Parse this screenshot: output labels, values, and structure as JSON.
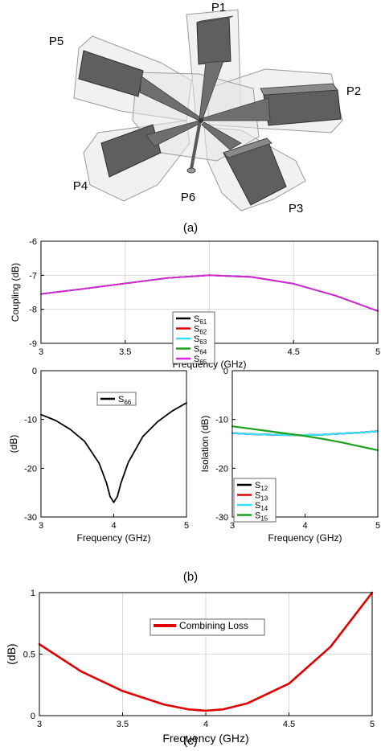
{
  "figure": {
    "ports": [
      "P1",
      "P2",
      "P3",
      "P4",
      "P5",
      "P6"
    ],
    "captions": [
      "(a)",
      "(b)",
      "(c)"
    ],
    "colors": {
      "black": "#000000",
      "red": "#e00000",
      "cyan": "#33e0ff",
      "green": "#1aa31a",
      "magenta": "#e020e0",
      "grid": "#d8d8d8"
    }
  },
  "chart_data": [
    {
      "id": "coupling",
      "type": "line",
      "xlabel": "Frequency (GHz)",
      "ylabel": "Coupling (dB)",
      "xlim": [
        3,
        5
      ],
      "ylim": [
        -9,
        -6
      ],
      "xticks": [
        3,
        3.5,
        4,
        4.5,
        5
      ],
      "xtick_labels": [
        "3",
        "3.5",
        "4",
        "4.5",
        "5"
      ],
      "yticks": [
        -9,
        -8,
        -7,
        -6
      ],
      "ytick_labels": [
        "-9",
        "-8",
        "-7",
        "-6"
      ],
      "grid": true,
      "legend": "center",
      "x": [
        3.0,
        3.25,
        3.5,
        3.75,
        4.0,
        4.25,
        4.5,
        4.75,
        5.0
      ],
      "series": [
        {
          "name": "S",
          "sub": "61",
          "color": "black",
          "values": [
            -7.55,
            -7.4,
            -7.24,
            -7.08,
            -7.0,
            -7.05,
            -7.25,
            -7.6,
            -8.05
          ]
        },
        {
          "name": "S",
          "sub": "62",
          "color": "red",
          "values": [
            -7.55,
            -7.4,
            -7.24,
            -7.08,
            -7.0,
            -7.05,
            -7.25,
            -7.6,
            -8.05
          ]
        },
        {
          "name": "S",
          "sub": "63",
          "color": "cyan",
          "values": [
            -7.55,
            -7.4,
            -7.24,
            -7.08,
            -7.0,
            -7.05,
            -7.25,
            -7.6,
            -8.05
          ]
        },
        {
          "name": "S",
          "sub": "64",
          "color": "green",
          "values": [
            -7.55,
            -7.4,
            -7.24,
            -7.08,
            -7.0,
            -7.05,
            -7.25,
            -7.6,
            -8.05
          ]
        },
        {
          "name": "S",
          "sub": "65",
          "color": "magenta",
          "values": [
            -7.55,
            -7.4,
            -7.24,
            -7.08,
            -7.0,
            -7.05,
            -7.25,
            -7.6,
            -8.05
          ]
        }
      ]
    },
    {
      "id": "reflection",
      "type": "line",
      "xlabel": "Frequency (GHz)",
      "ylabel": "(dB)",
      "xlim": [
        3,
        5
      ],
      "ylim": [
        -30,
        0
      ],
      "xticks": [
        3,
        4,
        5
      ],
      "xtick_labels": [
        "3",
        "4",
        "5"
      ],
      "yticks": [
        -30,
        -20,
        -10,
        0
      ],
      "ytick_labels": [
        "-30",
        "-20",
        "-10",
        "0"
      ],
      "grid": false,
      "legend": "top-center",
      "x": [
        3.0,
        3.2,
        3.4,
        3.6,
        3.8,
        3.9,
        3.95,
        4.0,
        4.05,
        4.1,
        4.2,
        4.4,
        4.6,
        4.8,
        5.0
      ],
      "series": [
        {
          "name": "S",
          "sub": "66",
          "color": "black",
          "values": [
            -9.0,
            -10.2,
            -12.0,
            -14.5,
            -19.0,
            -23.0,
            -25.8,
            -27.0,
            -25.8,
            -23.0,
            -18.8,
            -13.5,
            -10.5,
            -8.3,
            -6.6
          ]
        }
      ]
    },
    {
      "id": "isolation",
      "type": "line",
      "xlabel": "Frequency (GHz)",
      "ylabel": "Isolation (dB)",
      "xlim": [
        3,
        5
      ],
      "ylim": [
        -30,
        0
      ],
      "xticks": [
        3,
        4,
        5
      ],
      "xtick_labels": [
        "3",
        "4",
        "5"
      ],
      "yticks": [
        -30,
        -20,
        -10,
        0
      ],
      "ytick_labels": [
        "-30",
        "-20",
        "-10",
        "0"
      ],
      "grid": false,
      "legend": "bottom-left",
      "x": [
        3.0,
        3.25,
        3.5,
        3.75,
        4.0,
        4.25,
        4.5,
        4.75,
        5.0
      ],
      "series": [
        {
          "name": "S",
          "sub": "12",
          "color": "black",
          "values": [
            -12.8,
            -13.0,
            -13.1,
            -13.2,
            -13.2,
            -13.1,
            -12.9,
            -12.7,
            -12.4
          ]
        },
        {
          "name": "S",
          "sub": "13",
          "color": "red",
          "values": [
            -12.8,
            -13.0,
            -13.1,
            -13.2,
            -13.2,
            -13.1,
            -12.9,
            -12.7,
            -12.4
          ]
        },
        {
          "name": "S",
          "sub": "14",
          "color": "cyan",
          "values": [
            -12.8,
            -13.0,
            -13.1,
            -13.2,
            -13.2,
            -13.1,
            -12.9,
            -12.7,
            -12.4
          ]
        },
        {
          "name": "S",
          "sub": "15",
          "color": "green",
          "values": [
            -11.4,
            -11.9,
            -12.4,
            -12.9,
            -13.4,
            -14.0,
            -14.7,
            -15.5,
            -16.3
          ]
        }
      ]
    },
    {
      "id": "combining",
      "type": "line",
      "xlabel": "Frequency (GHz)",
      "ylabel": "(dB)",
      "xlim": [
        3,
        5
      ],
      "ylim": [
        0,
        1
      ],
      "xticks": [
        3,
        3.5,
        4,
        4.5,
        5
      ],
      "xtick_labels": [
        "3",
        "3.5",
        "4",
        "4.5",
        "5"
      ],
      "yticks": [
        0,
        0.5,
        1
      ],
      "ytick_labels": [
        "0",
        "0.5",
        "1"
      ],
      "grid": true,
      "legend": "top-center",
      "x": [
        3.0,
        3.25,
        3.5,
        3.75,
        3.9,
        4.0,
        4.1,
        4.25,
        4.5,
        4.75,
        5.0
      ],
      "series": [
        {
          "name": "Combining Loss",
          "color": "red",
          "values": [
            0.58,
            0.36,
            0.2,
            0.09,
            0.05,
            0.04,
            0.05,
            0.1,
            0.26,
            0.56,
            1.0
          ]
        }
      ]
    }
  ]
}
